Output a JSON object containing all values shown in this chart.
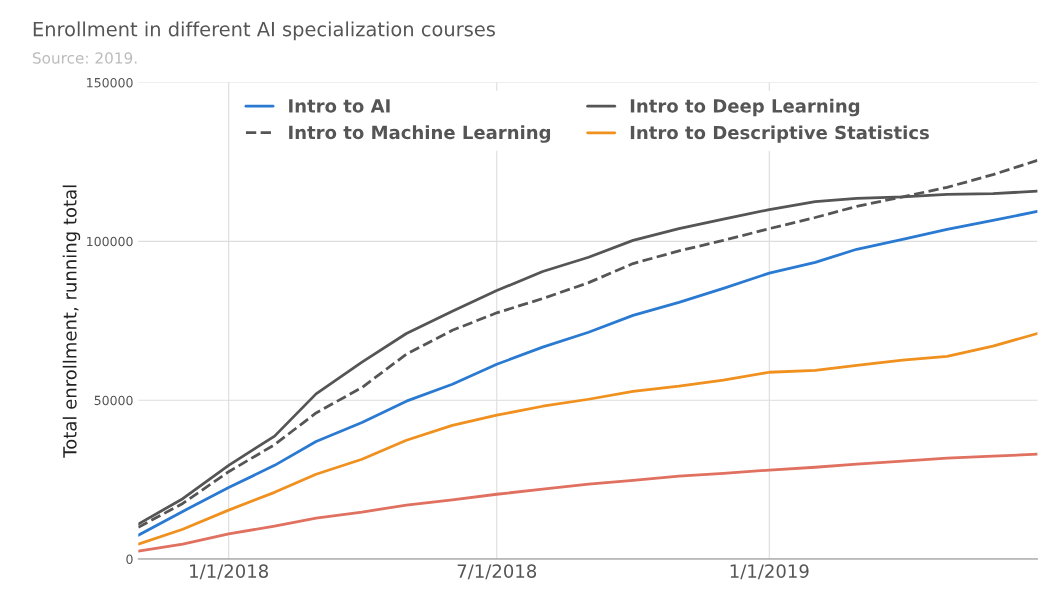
{
  "chart_data": {
    "type": "line",
    "title": "Enrollment in different AI specialization courses",
    "subtitle": "Source: 2019.",
    "ylabel": "Total enrollment, running total",
    "x": [
      "2017-11-01",
      "2017-12-01",
      "2018-01-01",
      "2018-02-01",
      "2018-03-01",
      "2018-04-01",
      "2018-05-01",
      "2018-06-01",
      "2018-07-01",
      "2018-08-01",
      "2018-09-01",
      "2018-10-01",
      "2018-11-01",
      "2018-12-01",
      "2019-01-01",
      "2019-02-01",
      "2019-03-01",
      "2019-04-01",
      "2019-05-01",
      "2019-06-01",
      "2019-07-01"
    ],
    "series": [
      {
        "name": "Intro to AI",
        "color": "#2a7ad2",
        "line_style": "solid",
        "values": [
          7500,
          15000,
          22500,
          29500,
          37000,
          43000,
          49700,
          55000,
          61300,
          66700,
          71400,
          76700,
          80800,
          85200,
          90000,
          93400,
          97500,
          100600,
          103800,
          106600,
          109400
        ]
      },
      {
        "name": "Intro to Machine Learning",
        "color": "#555555",
        "line_style": "dashed",
        "values": [
          10000,
          17500,
          27500,
          36000,
          46000,
          54000,
          64500,
          72000,
          77500,
          82000,
          87000,
          93000,
          97000,
          100300,
          104000,
          107500,
          111000,
          114000,
          117000,
          121000,
          125500
        ]
      },
      {
        "color": "#e0705f",
        "line_style": "solid",
        "values": [
          2500,
          4700,
          7900,
          10400,
          12900,
          14800,
          17000,
          18600,
          20400,
          22000,
          23600,
          24800,
          26100,
          27000,
          28000,
          28900,
          29900,
          30800,
          31800,
          32400,
          33000
        ]
      },
      {
        "name": "Intro to Deep Learning",
        "color": "#555555",
        "line_style": "solid",
        "values": [
          11000,
          19000,
          29500,
          38700,
          52000,
          62000,
          71000,
          78000,
          84500,
          90500,
          95000,
          100300,
          104000,
          107000,
          110000,
          112500,
          113500,
          114000,
          114800,
          115000,
          115800
        ]
      },
      {
        "name": "Intro to Descriptive Statistics",
        "color": "#f0901e",
        "line_style": "solid",
        "values": [
          4700,
          9400,
          15400,
          21000,
          26700,
          31400,
          37400,
          42100,
          45300,
          48100,
          50300,
          52800,
          54400,
          56300,
          58800,
          59400,
          61000,
          62600,
          63800,
          67000,
          71000
        ]
      }
    ],
    "xlim": [
      "2017-11-01",
      "2019-07-01"
    ],
    "xticks": [
      {
        "value": "2018-01-01",
        "label": "1/1/2018"
      },
      {
        "value": "2018-07-01",
        "label": "7/1/2018"
      },
      {
        "value": "2019-01-01",
        "label": "1/1/2019"
      }
    ],
    "ylim": [
      0,
      150000
    ],
    "yticks": [
      0,
      50000,
      100000,
      150000
    ],
    "grid": true,
    "legend": "top",
    "marker": "none"
  }
}
